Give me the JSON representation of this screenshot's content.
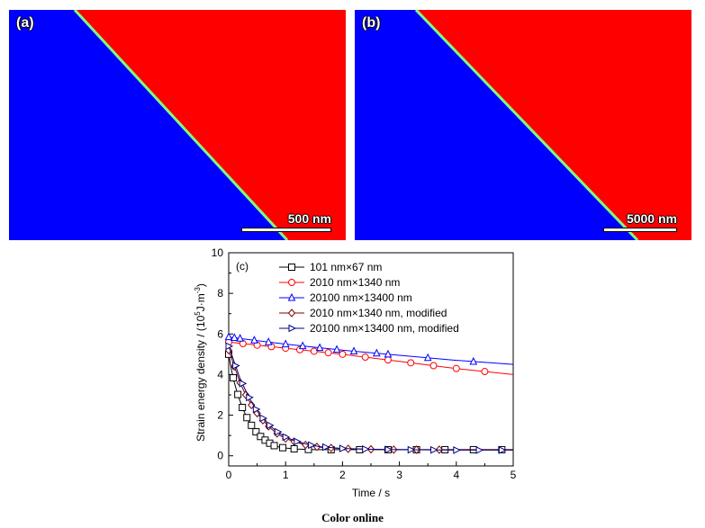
{
  "panels": [
    {
      "label": "(a)",
      "scale_text": "500 nm",
      "colors": {
        "left": "#0000ff",
        "right": "#ff0000",
        "boundary": "#7fff7f"
      }
    },
    {
      "label": "(b)",
      "scale_text": "5000 nm",
      "colors": {
        "left": "#0000ff",
        "right": "#ff0000",
        "boundary": "#7fff7f"
      }
    }
  ],
  "caption": "Color online",
  "chart_data": {
    "type": "line",
    "panel_label": "(c)",
    "xlabel": "Time / s",
    "ylabel": "Strain energy density / (10",
    "ylabel_sup1": "5",
    "ylabel_mid": "J·m",
    "ylabel_sup2": "-3",
    "ylabel_end": ")",
    "xlim": [
      0,
      5
    ],
    "ylim": [
      -0.5,
      10
    ],
    "xticks": [
      0,
      1,
      2,
      3,
      4,
      5
    ],
    "yticks": [
      0,
      2,
      4,
      6,
      8,
      10
    ],
    "grid": false,
    "legend": "top-left",
    "series": [
      {
        "name": "101 nm×67 nm",
        "color": "#000000",
        "marker": "square",
        "x": [
          0,
          0.05,
          0.1,
          0.15,
          0.2,
          0.25,
          0.3,
          0.35,
          0.4,
          0.45,
          0.5,
          0.6,
          0.7,
          0.8,
          0.9,
          1.0,
          1.2,
          1.5,
          2.0,
          2.5,
          3.0,
          3.5,
          4.0,
          4.5,
          5.0
        ],
        "y": [
          5.0,
          4.2,
          3.6,
          3.1,
          2.7,
          2.3,
          2.0,
          1.7,
          1.5,
          1.3,
          1.1,
          0.85,
          0.65,
          0.5,
          0.42,
          0.38,
          0.33,
          0.3,
          0.3,
          0.3,
          0.3,
          0.3,
          0.3,
          0.3,
          0.3
        ],
        "marker_x": [
          0,
          0.08,
          0.16,
          0.24,
          0.32,
          0.4,
          0.48,
          0.56,
          0.64,
          0.72,
          0.8,
          0.95,
          1.15,
          1.4,
          1.8,
          2.3,
          2.8,
          3.3,
          3.8,
          4.3,
          4.8
        ]
      },
      {
        "name": "2010 nm×1340 nm",
        "color": "#ff0000",
        "marker": "circle",
        "x": [
          0,
          1,
          2,
          3,
          4,
          5
        ],
        "y": [
          5.6,
          5.3,
          5.0,
          4.65,
          4.3,
          4.0
        ],
        "marker_x": [
          0,
          0.25,
          0.5,
          0.75,
          1.0,
          1.25,
          1.5,
          1.75,
          2.0,
          2.4,
          2.8,
          3.2,
          3.6,
          4.0,
          4.5
        ]
      },
      {
        "name": "20100 nm×13400 nm",
        "color": "#0000ff",
        "marker": "triangle-up",
        "x": [
          0,
          1,
          2,
          3,
          4,
          5
        ],
        "y": [
          5.85,
          5.5,
          5.2,
          4.95,
          4.7,
          4.5
        ],
        "marker_x": [
          0,
          0.1,
          0.2,
          0.45,
          0.7,
          1.0,
          1.3,
          1.6,
          1.9,
          2.2,
          2.6,
          2.8,
          3.5,
          4.3
        ]
      },
      {
        "name": "2010 nm×1340 nm, modified",
        "color": "#800000",
        "marker": "diamond",
        "x": [
          0,
          0.05,
          0.1,
          0.15,
          0.2,
          0.3,
          0.4,
          0.5,
          0.6,
          0.7,
          0.8,
          0.9,
          1.0,
          1.2,
          1.4,
          1.6,
          2.0,
          2.5,
          3.0,
          4.0,
          5.0
        ],
        "y": [
          5.2,
          4.8,
          4.4,
          4.0,
          3.6,
          3.0,
          2.5,
          2.1,
          1.75,
          1.45,
          1.2,
          1.0,
          0.85,
          0.65,
          0.5,
          0.42,
          0.35,
          0.32,
          0.3,
          0.3,
          0.3
        ],
        "marker_x": [
          0,
          0.1,
          0.2,
          0.3,
          0.4,
          0.5,
          0.6,
          0.7,
          0.85,
          1.0,
          1.15,
          1.35,
          1.55,
          1.8,
          2.1,
          2.5,
          2.9,
          3.3,
          3.7
        ]
      },
      {
        "name": "20100 nm×13400 nm, modified",
        "color": "#000080",
        "marker": "triangle-right",
        "x": [
          0,
          0.05,
          0.1,
          0.15,
          0.2,
          0.3,
          0.4,
          0.5,
          0.6,
          0.7,
          0.8,
          0.9,
          1.0,
          1.2,
          1.4,
          1.6,
          2.0,
          2.5,
          3.0,
          4.0,
          5.0
        ],
        "y": [
          5.4,
          5.0,
          4.6,
          4.2,
          3.8,
          3.2,
          2.65,
          2.2,
          1.85,
          1.55,
          1.3,
          1.1,
          0.92,
          0.7,
          0.55,
          0.45,
          0.36,
          0.32,
          0.3,
          0.28,
          0.28
        ],
        "marker_x": [
          0,
          0.12,
          0.24,
          0.36,
          0.48,
          0.6,
          0.72,
          0.86,
          1.0,
          1.2,
          1.45,
          1.7,
          2.0,
          2.4,
          2.8,
          3.2,
          3.6,
          4.0,
          4.4,
          4.8
        ]
      }
    ]
  }
}
